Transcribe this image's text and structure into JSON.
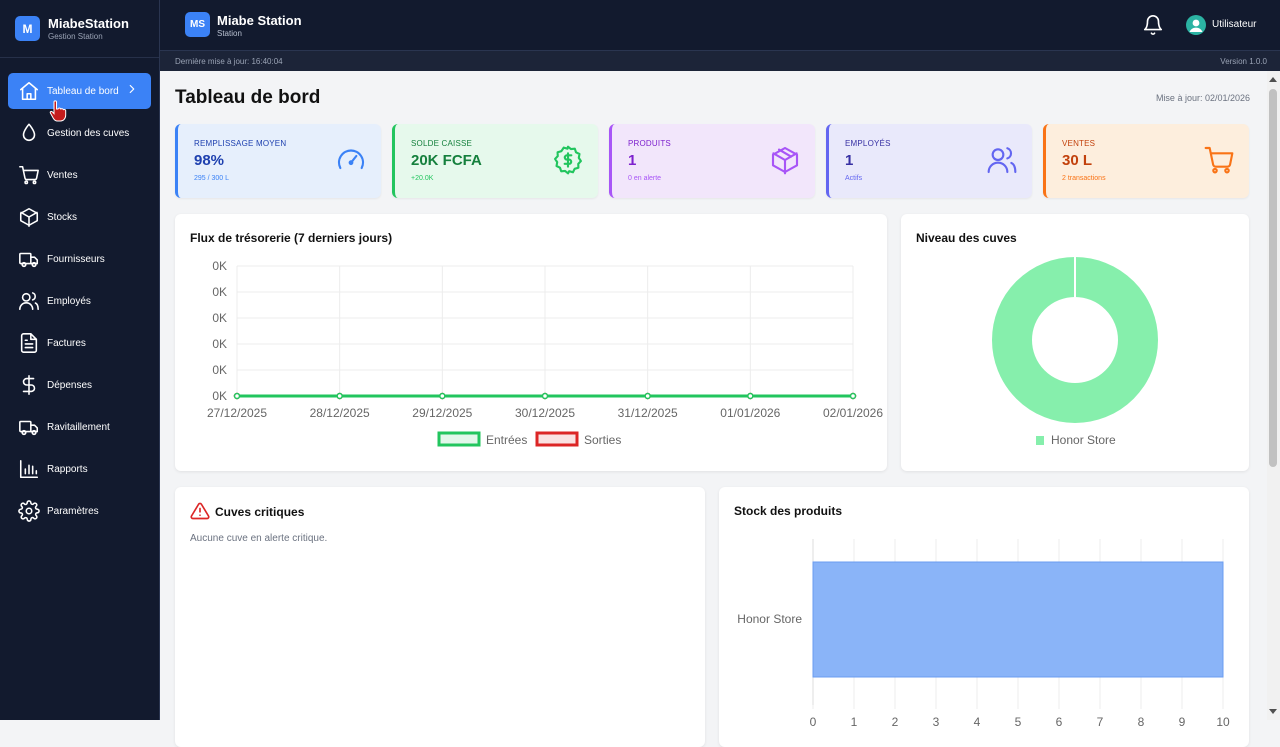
{
  "brand": {
    "initial": "M",
    "name": "MiabeStation",
    "subtitle": "Gestion Station"
  },
  "sidebar": {
    "items": [
      {
        "label": "Tableau de bord",
        "icon": "home-icon",
        "active": true
      },
      {
        "label": "Gestion des cuves",
        "icon": "droplet-icon"
      },
      {
        "label": "Ventes",
        "icon": "cart-icon"
      },
      {
        "label": "Stocks",
        "icon": "box-icon"
      },
      {
        "label": "Fournisseurs",
        "icon": "truck-icon"
      },
      {
        "label": "Employés",
        "icon": "users-icon"
      },
      {
        "label": "Factures",
        "icon": "file-icon"
      },
      {
        "label": "Dépenses",
        "icon": "dollar-icon"
      },
      {
        "label": "Ravitaillement",
        "icon": "truck-icon"
      },
      {
        "label": "Rapports",
        "icon": "bar-chart-icon"
      },
      {
        "label": "Paramètres",
        "icon": "gear-icon"
      }
    ]
  },
  "topbar": {
    "logo": "MS",
    "title": "Miabe Station",
    "subtitle": "Station",
    "user": "Utilisateur"
  },
  "statusbar": {
    "last_update": "Dernière mise à jour: 16:40:04",
    "version": "Version 1.0.0"
  },
  "page": {
    "title": "Tableau de bord",
    "updated": "Mise à jour: 02/01/2026"
  },
  "kpis": [
    {
      "label": "Remplissage moyen",
      "value": "98%",
      "sub": "295 / 300 L",
      "icon": "gauge-icon",
      "color": "#3b82f6",
      "text": "#1e40af",
      "bg": "#e6effc"
    },
    {
      "label": "Solde caisse",
      "value": "20K FCFA",
      "sub": "+20.0K",
      "icon": "dollar-circle-icon",
      "color": "#22c55e",
      "text": "#15803d",
      "bg": "#e6f9ec"
    },
    {
      "label": "Produits",
      "value": "1",
      "sub": "0 en alerte",
      "icon": "package-icon",
      "color": "#a855f7",
      "text": "#7e22ce",
      "bg": "#f2e6fb"
    },
    {
      "label": "Employés",
      "value": "1",
      "sub": "Actifs",
      "icon": "users-icon",
      "color": "#6366f1",
      "text": "#3730a3",
      "bg": "#e9e9fb"
    },
    {
      "label": "Ventes",
      "value": "30 L",
      "sub": "2 transactions",
      "icon": "cart-icon",
      "color": "#f97316",
      "text": "#c2410c",
      "bg": "#fdeedd"
    }
  ],
  "cashflow": {
    "title": "Flux de trésorerie (7 derniers jours)"
  },
  "tanks": {
    "title": "Niveau des cuves"
  },
  "critical": {
    "title": "Cuves critiques",
    "empty": "Aucune cuve en alerte critique."
  },
  "stock": {
    "title": "Stock des produits"
  },
  "chart_data": [
    {
      "type": "line",
      "title": "Flux de trésorerie (7 derniers jours)",
      "x": [
        "27/12/2025",
        "28/12/2025",
        "29/12/2025",
        "30/12/2025",
        "31/12/2025",
        "01/01/2026",
        "02/01/2026"
      ],
      "series": [
        {
          "name": "Entrées",
          "values": [
            0,
            0,
            0,
            0,
            0,
            0,
            0
          ],
          "color": "#22c55e"
        },
        {
          "name": "Sorties",
          "values": [
            0,
            0,
            0,
            0,
            0,
            0,
            0
          ],
          "color": "#dc2626"
        }
      ],
      "yticks": [
        "0K",
        "0K",
        "0K",
        "0K",
        "0K",
        "0K"
      ],
      "legend": "bottom",
      "grid": true
    },
    {
      "type": "pie",
      "title": "Niveau des cuves",
      "variant": "doughnut",
      "labels": [
        "Honor Store"
      ],
      "values": [
        1
      ],
      "colors": [
        "#86efac"
      ],
      "legend": "bottom"
    },
    {
      "type": "bar",
      "title": "Stock des produits",
      "orientation": "horizontal",
      "categories": [
        "Honor Store"
      ],
      "values": [
        10
      ],
      "xlim": [
        0,
        10
      ],
      "xticks": [
        "0",
        "1",
        "2",
        "3",
        "4",
        "5",
        "6",
        "7",
        "8",
        "9",
        "10"
      ],
      "color": "#8ab4f8",
      "grid": true
    }
  ]
}
